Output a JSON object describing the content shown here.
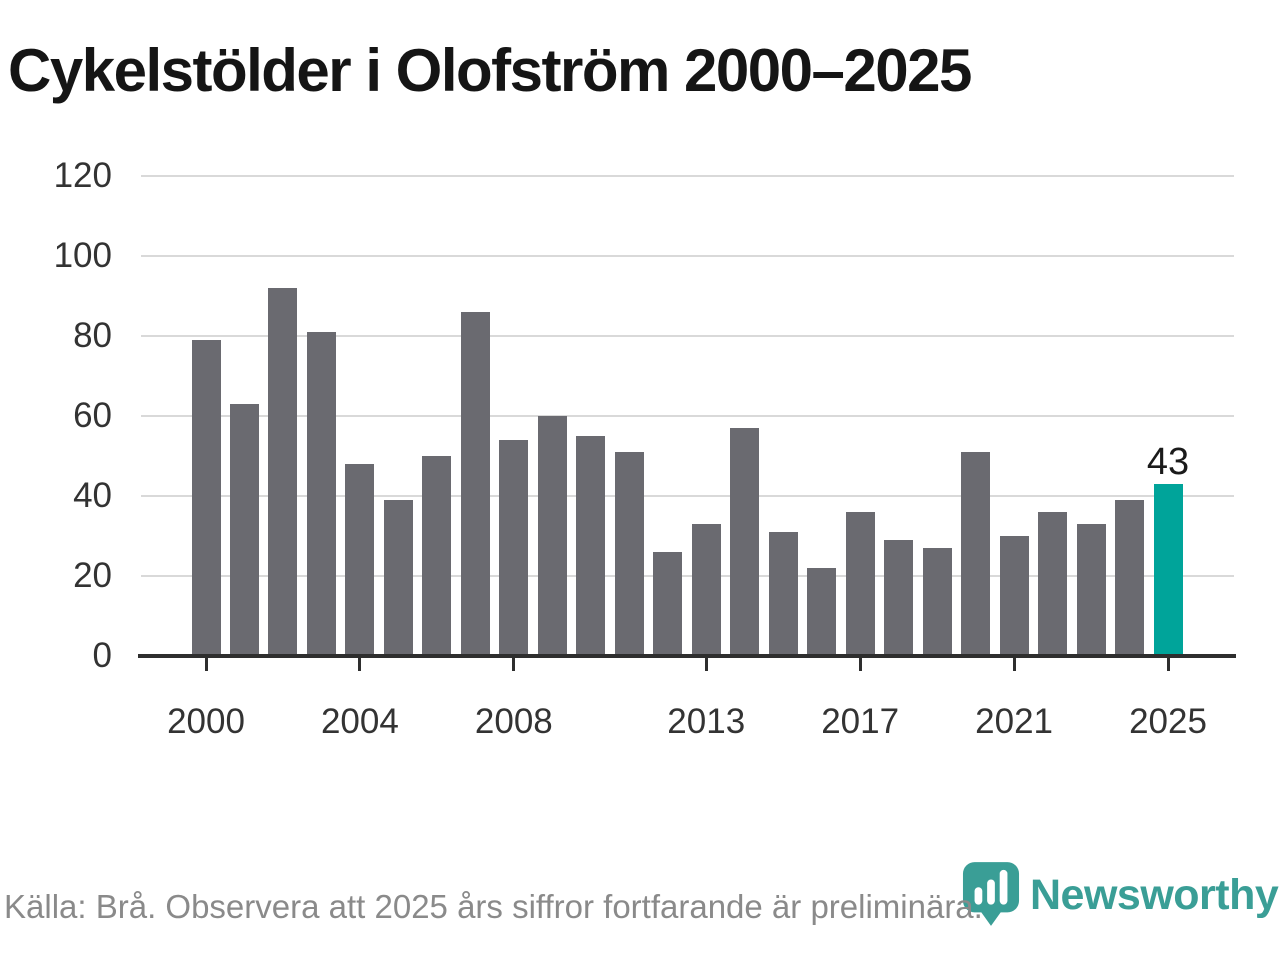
{
  "title": "Cykelstölder i Olofström 2000–2025",
  "chart_data": {
    "type": "bar",
    "title": "Cykelstölder i Olofström 2000–2025",
    "x": [
      2000,
      2001,
      2002,
      2003,
      2004,
      2005,
      2006,
      2007,
      2008,
      2009,
      2010,
      2011,
      2012,
      2013,
      2014,
      2015,
      2016,
      2017,
      2018,
      2019,
      2020,
      2021,
      2022,
      2023,
      2024,
      2025
    ],
    "values": [
      79,
      63,
      92,
      81,
      48,
      39,
      50,
      86,
      54,
      60,
      55,
      51,
      26,
      33,
      57,
      31,
      22,
      36,
      29,
      27,
      51,
      30,
      36,
      33,
      39,
      43
    ],
    "highlight": {
      "year": 2025,
      "value": 43,
      "label": "43"
    },
    "xticks": [
      2000,
      2004,
      2008,
      2013,
      2017,
      2021,
      2025
    ],
    "yticks": [
      0,
      20,
      40,
      60,
      80,
      100,
      120
    ],
    "ylim": [
      0,
      120
    ],
    "grid": "horizontal",
    "legend": "none",
    "colors": {
      "bar": "#6a6a70",
      "highlight": "#00a49a",
      "grid": "#d9d9d9",
      "axis": "#2e2e2e",
      "tick_label": "#333333",
      "value_label": "#1a1a1a"
    }
  },
  "footer": {
    "source": "Källa: Brå. Observera att 2025 års siffror fortfarande är preliminära.",
    "logo_text": "Newsworthy",
    "logo_color": "#3a9e96"
  }
}
